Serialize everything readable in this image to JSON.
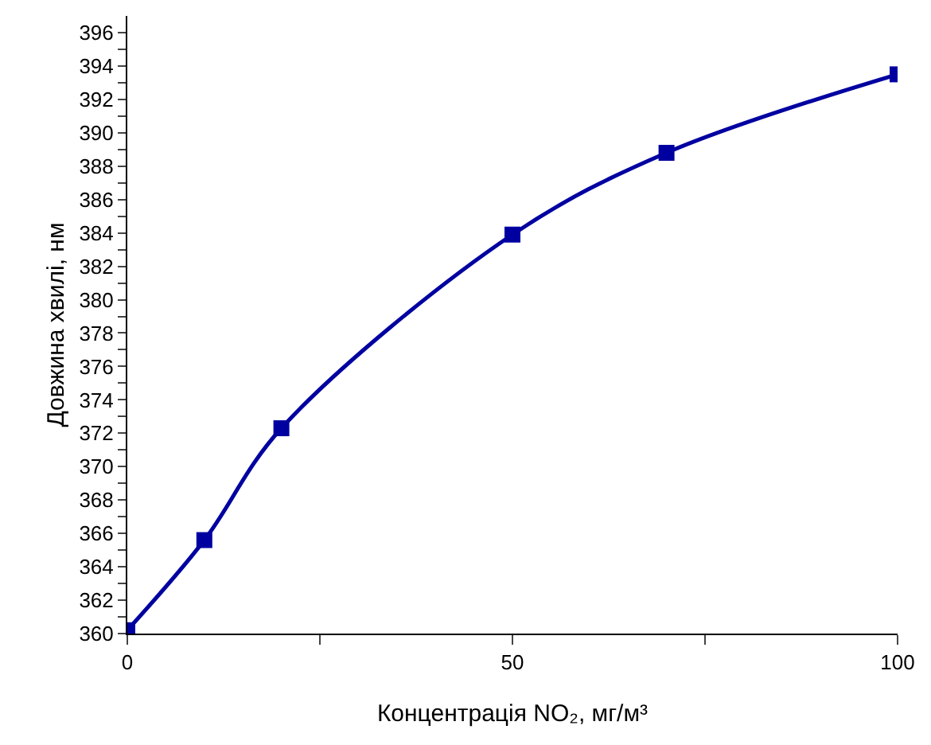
{
  "chart_data": {
    "type": "line",
    "xlabel": "Концентрація NO₂, мг/м³",
    "ylabel": "Довжина хвилі, нм",
    "x": [
      0,
      10,
      20,
      50,
      70,
      100
    ],
    "series": [
      {
        "color": "#0000a0",
        "values": [
          360.2,
          365.6,
          372.3,
          383.9,
          388.8,
          393.5
        ]
      }
    ],
    "xlim": [
      0,
      100
    ],
    "ylim": [
      360,
      397
    ],
    "xticks": [
      0,
      {
        "value": 25,
        "label": null
      },
      50,
      {
        "value": 75,
        "label": null
      },
      100
    ],
    "yticks": [
      360,
      {
        "value": 361,
        "label": null
      },
      362,
      {
        "value": 363,
        "label": null
      },
      364,
      {
        "value": 365,
        "label": null
      },
      366,
      {
        "value": 367,
        "label": null
      },
      368,
      {
        "value": 369,
        "label": null
      },
      370,
      {
        "value": 371,
        "label": null
      },
      372,
      {
        "value": 373,
        "label": null
      },
      374,
      {
        "value": 375,
        "label": null
      },
      376,
      {
        "value": 377,
        "label": null
      },
      378,
      {
        "value": 379,
        "label": null
      },
      380,
      {
        "value": 381,
        "label": null
      },
      382,
      {
        "value": 383,
        "label": null
      },
      384,
      {
        "value": 385,
        "label": null
      },
      386,
      {
        "value": 387,
        "label": null
      },
      388,
      {
        "value": 389,
        "label": null
      },
      390,
      {
        "value": 391,
        "label": null
      },
      392,
      {
        "value": 393,
        "label": null
      },
      394,
      {
        "value": 395,
        "label": null
      },
      396
    ],
    "marker": "square",
    "line_style": "solid"
  }
}
